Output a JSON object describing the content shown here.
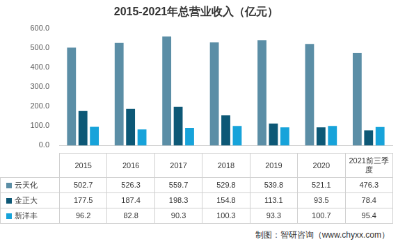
{
  "chart_data": {
    "type": "bar",
    "title": "2015-2021年总营业收入（亿元）",
    "categories": [
      "2015",
      "2016",
      "2017",
      "2018",
      "2019",
      "2020",
      "2021前三季度"
    ],
    "series": [
      {
        "name": "云天化",
        "color": "#5b8ea6",
        "values": [
          502.7,
          526.3,
          559.7,
          529.8,
          539.8,
          521.1,
          476.3
        ]
      },
      {
        "name": "金正大",
        "color": "#0d5876",
        "values": [
          177.5,
          187.4,
          198.3,
          154.8,
          113.1,
          93.5,
          78.4
        ]
      },
      {
        "name": "新洋丰",
        "color": "#17a3da",
        "values": [
          96.2,
          82.8,
          90.3,
          100.3,
          93.3,
          100.7,
          95.4
        ]
      }
    ],
    "ylim": [
      0,
      600
    ],
    "yticks": [
      {
        "value": 0,
        "label": "0.0"
      },
      {
        "value": 100,
        "label": "100.0"
      },
      {
        "value": 200,
        "label": "200.0"
      },
      {
        "value": 300,
        "label": "300.0"
      },
      {
        "value": 400,
        "label": "400.0"
      },
      {
        "value": 500,
        "label": "500.0"
      },
      {
        "value": 600,
        "label": "600.0"
      }
    ],
    "grid": false,
    "annotations": [
      "制图：智研咨询（www.chyxx.com）"
    ]
  }
}
